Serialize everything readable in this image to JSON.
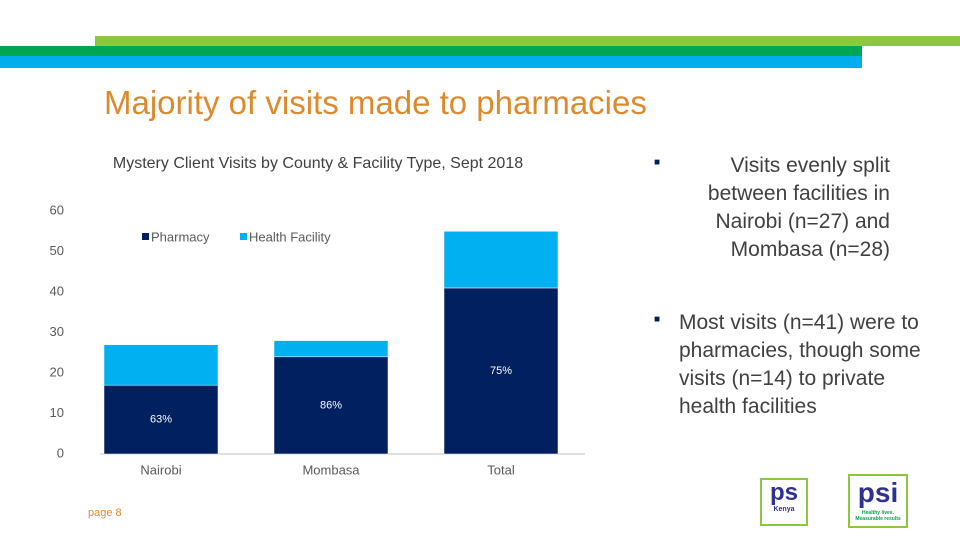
{
  "slide": {
    "title": "Majority of visits made to pharmacies",
    "bullets": [
      "Visits evenly split between facilities in Nairobi (n=27) and Mombasa (n=28)",
      "Most visits (n=41) were to pharmacies, though some visits (n=14) to private health facilities"
    ],
    "page": "page 8",
    "logos": [
      {
        "mark": "ps",
        "sub": "Kenya"
      },
      {
        "mark": "psi",
        "sub": "Healthy lives. Measurable results"
      }
    ]
  },
  "chart_data": {
    "type": "stacked_bar",
    "title": "Mystery Client Visits by County & Facility Type, Sept 2018",
    "categories": [
      "Nairobi",
      "Mombasa",
      "Total"
    ],
    "series": [
      {
        "name": "Pharmacy",
        "color": "#002060",
        "values": [
          17,
          24,
          41
        ]
      },
      {
        "name": "Health Facility",
        "color": "#00b0f0",
        "values": [
          10,
          4,
          14
        ]
      }
    ],
    "annotations": [
      "63%",
      "86%",
      "75%"
    ],
    "ylim": [
      0,
      60
    ],
    "yticks": [
      0,
      10,
      20,
      30,
      40,
      50,
      60
    ],
    "grid": false,
    "legend": "top"
  }
}
